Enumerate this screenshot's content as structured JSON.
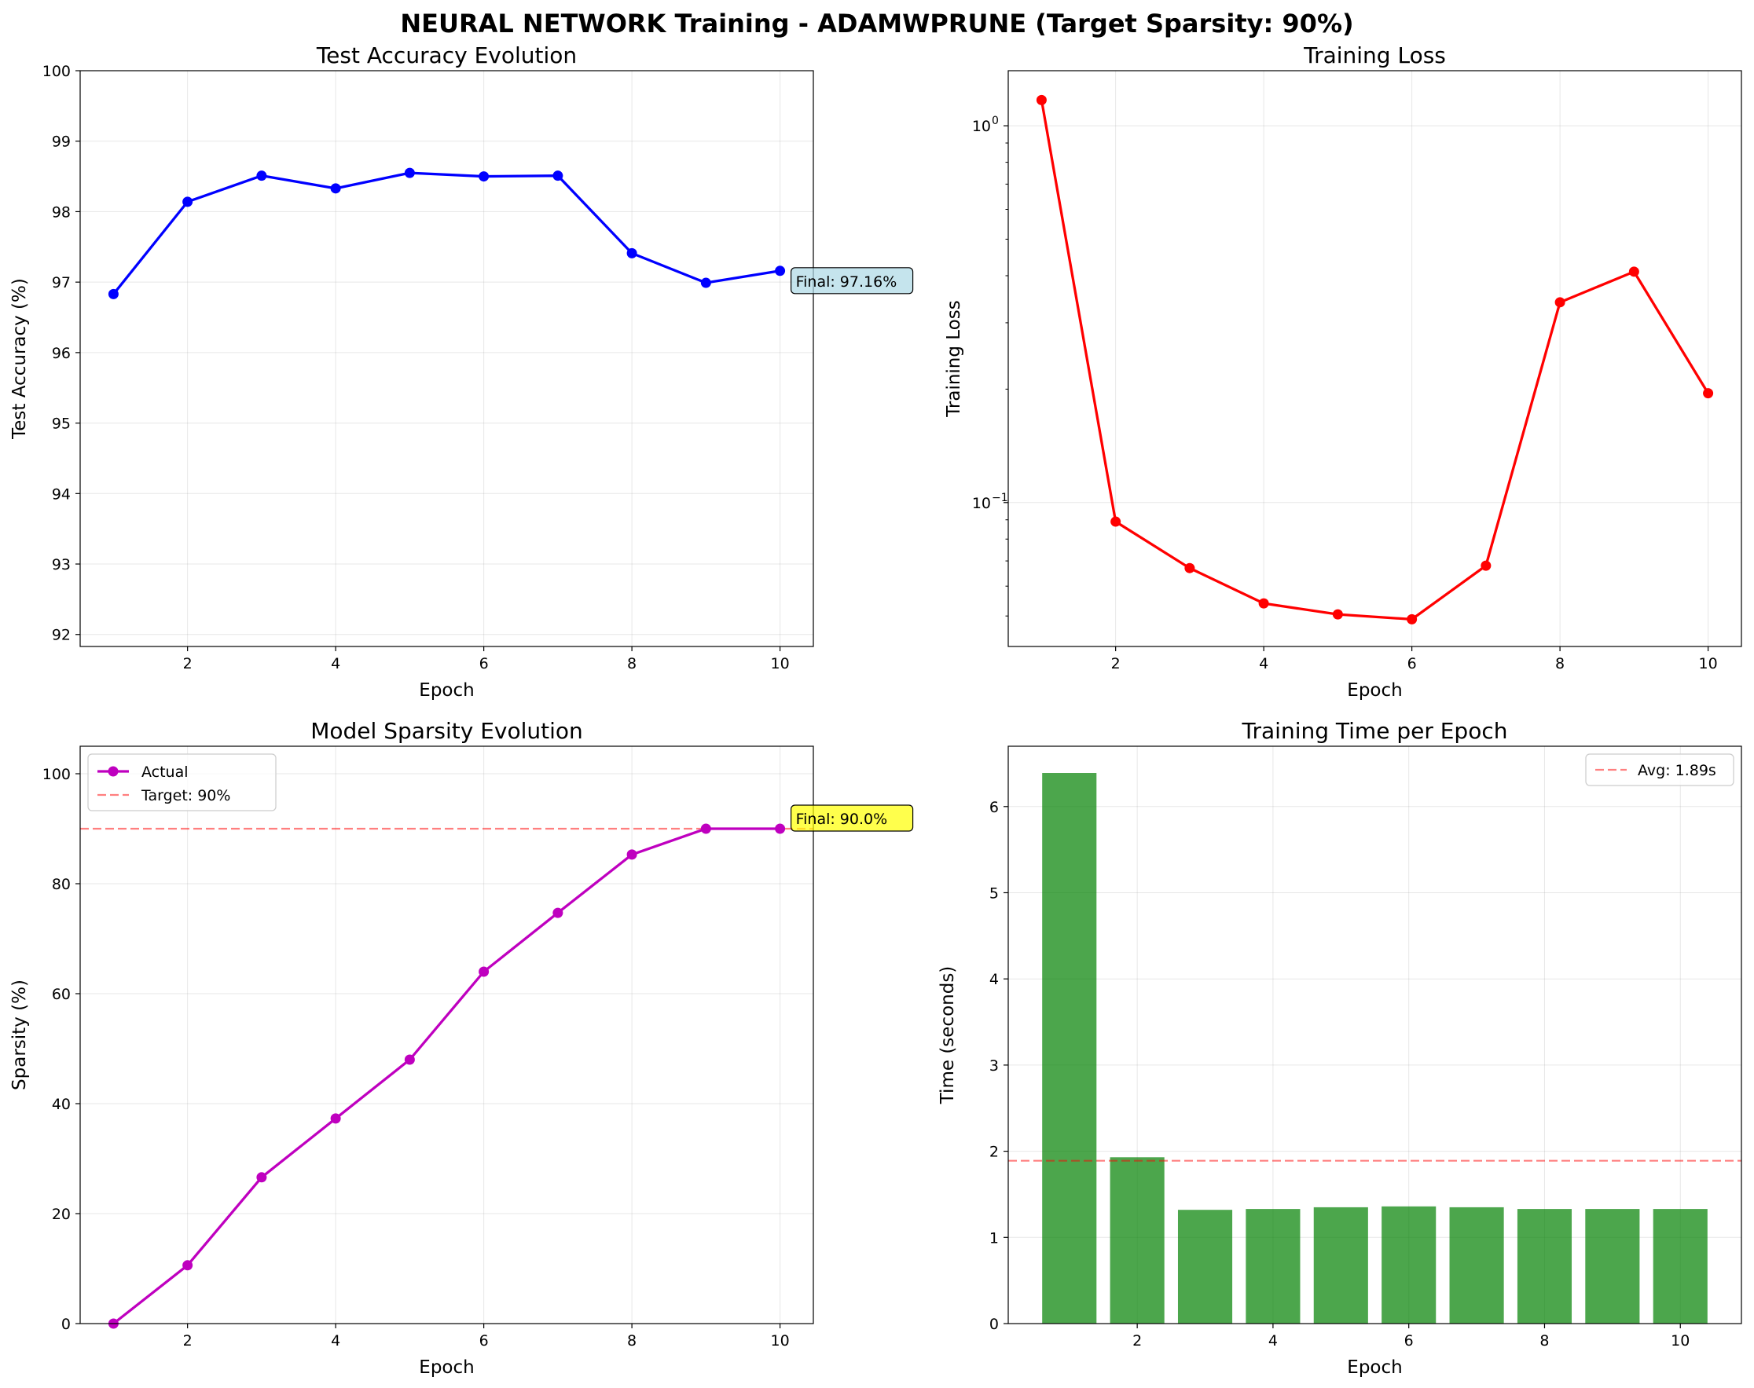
{
  "suptitle": "NEURAL NETWORK Training - ADAMWPRUNE (Target Sparsity: 90%)",
  "chart_data": [
    {
      "type": "line",
      "title": "Test Accuracy Evolution",
      "xlabel": "Epoch",
      "ylabel": "Test Accuracy (%)",
      "x": [
        1,
        2,
        3,
        4,
        5,
        6,
        7,
        8,
        9,
        10
      ],
      "series": [
        {
          "values": [
            96.83,
            98.14,
            98.51,
            98.33,
            98.55,
            98.5,
            98.51,
            97.41,
            96.99,
            97.16
          ],
          "color": "#0000ff"
        }
      ],
      "xlim": [
        0.55,
        10.45
      ],
      "ylim": [
        91.83,
        100
      ],
      "xticks": [
        2,
        4,
        6,
        8,
        10
      ],
      "yticks": [
        92,
        93,
        94,
        95,
        96,
        97,
        98,
        99,
        100
      ],
      "grid": true,
      "annotation": {
        "text": "Final: 97.16%",
        "x": 10,
        "y": 97.16,
        "facecolor": "#add8e6"
      }
    },
    {
      "type": "line",
      "title": "Training Loss",
      "xlabel": "Epoch",
      "ylabel": "Training Loss",
      "yscale": "log",
      "x": [
        1,
        2,
        3,
        4,
        5,
        6,
        7,
        8,
        9,
        10
      ],
      "series": [
        {
          "values": [
            1.17,
            0.089,
            0.067,
            0.054,
            0.0505,
            0.049,
            0.068,
            0.34,
            0.41,
            0.195
          ],
          "color": "#ff0000"
        }
      ],
      "xlim": [
        0.55,
        10.45
      ],
      "ylim": [
        0.0415,
        1.4
      ],
      "xticks": [
        2,
        4,
        6,
        8,
        10
      ],
      "yticks": [
        {
          "value": 1,
          "label": "10",
          "exp": "0"
        },
        {
          "value": 0.1,
          "label": "10",
          "exp": "−1"
        }
      ],
      "grid": true
    },
    {
      "type": "line",
      "title": "Model Sparsity Evolution",
      "xlabel": "Epoch",
      "ylabel": "Sparsity (%)",
      "x": [
        1,
        2,
        3,
        4,
        5,
        6,
        7,
        8,
        9,
        10
      ],
      "series": [
        {
          "name": "Actual",
          "values": [
            0,
            10.6,
            26.6,
            37.3,
            48.0,
            64.0,
            74.7,
            85.3,
            90.0,
            90.0
          ],
          "color": "#bf00bf"
        }
      ],
      "reference_line": {
        "name": "Target: 90%",
        "y": 90,
        "color": "#ff0000",
        "style": "dashed",
        "alpha": 0.5
      },
      "legend_loc": "upper left",
      "xlim": [
        0.55,
        10.45
      ],
      "ylim": [
        0,
        105
      ],
      "xticks": [
        2,
        4,
        6,
        8,
        10
      ],
      "yticks": [
        0,
        20,
        40,
        60,
        80,
        100
      ],
      "grid": true,
      "annotation": {
        "text": "Final: 90.0%",
        "x": 10,
        "y": 90,
        "facecolor": "#ffff00"
      }
    },
    {
      "type": "bar",
      "title": "Training Time per Epoch",
      "xlabel": "Epoch",
      "ylabel": "Time (seconds)",
      "categories": [
        1,
        2,
        3,
        4,
        5,
        6,
        7,
        8,
        9,
        10
      ],
      "values": [
        6.39,
        1.93,
        1.32,
        1.33,
        1.35,
        1.36,
        1.35,
        1.33,
        1.33,
        1.33
      ],
      "bar_color": "#008000",
      "bar_alpha": 0.7,
      "reference_line": {
        "name": "Avg: 1.89s",
        "y": 1.89,
        "color": "#ff0000",
        "style": "dashed",
        "alpha": 0.5
      },
      "legend_loc": "upper right",
      "xlim": [
        0.1,
        10.9
      ],
      "ylim": [
        0,
        6.7
      ],
      "xticks": [
        2,
        4,
        6,
        8,
        10
      ],
      "yticks": [
        0,
        1,
        2,
        3,
        4,
        5,
        6
      ],
      "grid": true
    }
  ]
}
